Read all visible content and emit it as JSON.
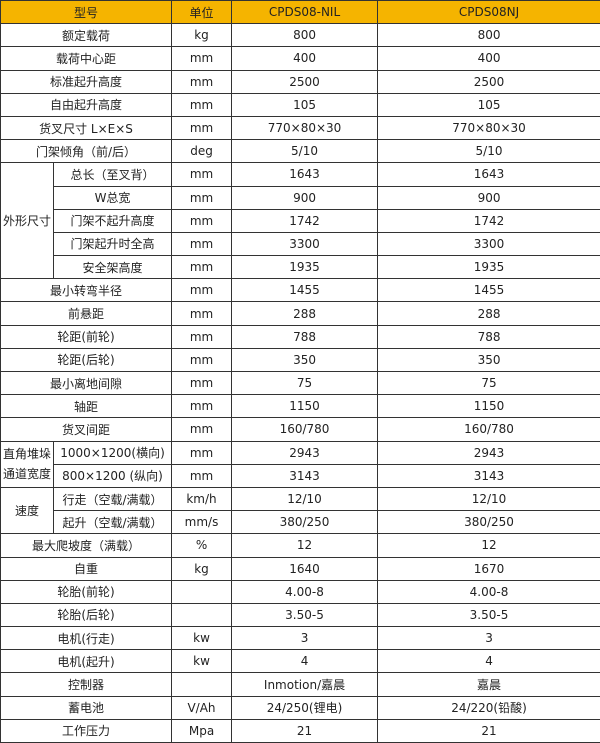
{
  "colors": {
    "header_bg": "#f5b400",
    "border": "#333333"
  },
  "header": {
    "model": "型号",
    "unit": "单位",
    "col1": "CPDS08-NIL",
    "col2": "CPDS08NJ"
  },
  "rows": [
    {
      "label": "额定载荷",
      "unit": "kg",
      "v1": "800",
      "v2": "800"
    },
    {
      "label": "载荷中心距",
      "unit": "mm",
      "v1": "400",
      "v2": "400"
    },
    {
      "label": "标准起升高度",
      "unit": "mm",
      "v1": "2500",
      "v2": "2500"
    },
    {
      "label": "自由起升高度",
      "unit": "mm",
      "v1": "105",
      "v2": "105"
    },
    {
      "label": "货叉尺寸 L×E×S",
      "unit": "mm",
      "v1": "770×80×30",
      "v2": "770×80×30"
    },
    {
      "label": "门架倾角（前/后）",
      "unit": "deg",
      "v1": "5/10",
      "v2": "5/10"
    },
    {
      "group": "外形尺寸",
      "span": 5,
      "label": "总长（至叉背）",
      "unit": "mm",
      "v1": "1643",
      "v2": "1643"
    },
    {
      "label": "W总宽",
      "unit": "mm",
      "v1": "900",
      "v2": "900",
      "sub": true
    },
    {
      "label": "门架不起升高度",
      "unit": "mm",
      "v1": "1742",
      "v2": "1742",
      "sub": true
    },
    {
      "label": "门架起升时全高",
      "unit": "mm",
      "v1": "3300",
      "v2": "3300",
      "sub": true
    },
    {
      "label": "安全架高度",
      "unit": "mm",
      "v1": "1935",
      "v2": "1935",
      "sub": true
    },
    {
      "label": "最小转弯半径",
      "unit": "mm",
      "v1": "1455",
      "v2": "1455"
    },
    {
      "label": "前悬距",
      "unit": "mm",
      "v1": "288",
      "v2": "288"
    },
    {
      "label": "轮距(前轮)",
      "unit": "mm",
      "v1": "788",
      "v2": "788"
    },
    {
      "label": "轮距(后轮)",
      "unit": "mm",
      "v1": "350",
      "v2": "350"
    },
    {
      "label": "最小离地间隙",
      "unit": "mm",
      "v1": "75",
      "v2": "75"
    },
    {
      "label": "轴距",
      "unit": "mm",
      "v1": "1150",
      "v2": "1150"
    },
    {
      "label": "货叉间距",
      "unit": "mm",
      "v1": "160/780",
      "v2": "160/780"
    },
    {
      "group": "直角堆垛通道宽度",
      "span": 2,
      "label": "1000×1200(横向)",
      "unit": "mm",
      "v1": "2943",
      "v2": "2943"
    },
    {
      "label": "800×1200 (纵向)",
      "unit": "mm",
      "v1": "3143",
      "v2": "3143",
      "sub": true
    },
    {
      "group": "速度",
      "span": 2,
      "label": "行走（空载/满载）",
      "unit": "km/h",
      "v1": "12/10",
      "v2": "12/10"
    },
    {
      "label": "起升（空载/满载）",
      "unit": "mm/s",
      "v1": "380/250",
      "v2": "380/250",
      "sub": true
    },
    {
      "label": "最大爬坡度（满载）",
      "unit": "%",
      "v1": "12",
      "v2": "12"
    },
    {
      "label": "自重",
      "unit": "kg",
      "v1": "1640",
      "v2": "1670"
    },
    {
      "label": "轮胎(前轮)",
      "unit": "",
      "v1": "4.00-8",
      "v2": "4.00-8"
    },
    {
      "label": "轮胎(后轮)",
      "unit": "",
      "v1": "3.50-5",
      "v2": "3.50-5"
    },
    {
      "label": "电机(行走)",
      "unit": "kw",
      "v1": "3",
      "v2": "3"
    },
    {
      "label": "电机(起升)",
      "unit": "kw",
      "v1": "4",
      "v2": "4"
    },
    {
      "label": "控制器",
      "unit": "",
      "v1": "Inmotion/嘉晨",
      "v2": "嘉晨"
    },
    {
      "label": "蓄电池",
      "unit": "V/Ah",
      "v1": "24/250(锂电)",
      "v2": "24/220(铅酸)"
    },
    {
      "label": "工作压力",
      "unit": "Mpa",
      "v1": "21",
      "v2": "21"
    }
  ]
}
